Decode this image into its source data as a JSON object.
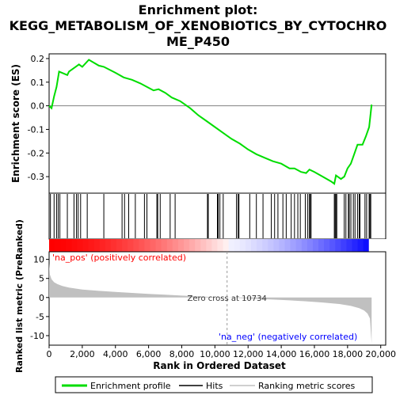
{
  "chart_data": {
    "type": "line",
    "title_lines": [
      "Enrichment plot:",
      "KEGG_METABOLISM_OF_XENOBIOTICS_BY_CYTOCHRO",
      "ME_P450"
    ],
    "top_panel": {
      "ylabel": "Enrichment score (ES)",
      "ylim": [
        -0.37,
        0.22
      ],
      "yticks": [
        "0.2",
        "0.1",
        "0.0",
        "-0.1",
        "-0.2",
        "-0.3"
      ],
      "ytick_values": [
        0.2,
        0.1,
        0.0,
        -0.1,
        -0.2,
        -0.3
      ],
      "series": [
        {
          "name": "Enrichment profile",
          "color": "#00dd00",
          "x": [
            0,
            150,
            300,
            450,
            600,
            1100,
            1200,
            1600,
            1800,
            2000,
            2400,
            3000,
            3300,
            4000,
            4500,
            5000,
            5500,
            5900,
            6300,
            6600,
            7000,
            7400,
            7900,
            8500,
            9000,
            9500,
            10000,
            10500,
            11000,
            11500,
            12000,
            12500,
            13000,
            13500,
            14000,
            14500,
            14800,
            15200,
            15500,
            15700,
            16000,
            16500,
            17000,
            17200,
            17300,
            17600,
            17800,
            18000,
            18200,
            18400,
            18600,
            18900,
            19100,
            19300,
            19450
          ],
          "y": [
            0.0,
            -0.01,
            0.04,
            0.08,
            0.145,
            0.13,
            0.145,
            0.165,
            0.175,
            0.165,
            0.195,
            0.17,
            0.165,
            0.14,
            0.12,
            0.11,
            0.095,
            0.08,
            0.065,
            0.07,
            0.055,
            0.035,
            0.02,
            -0.01,
            -0.04,
            -0.065,
            -0.09,
            -0.115,
            -0.14,
            -0.16,
            -0.185,
            -0.205,
            -0.22,
            -0.235,
            -0.245,
            -0.265,
            -0.265,
            -0.28,
            -0.285,
            -0.27,
            -0.28,
            -0.3,
            -0.32,
            -0.33,
            -0.295,
            -0.31,
            -0.3,
            -0.265,
            -0.245,
            -0.205,
            -0.165,
            -0.165,
            -0.13,
            -0.09,
            0.005
          ]
        }
      ]
    },
    "hits_panel": {
      "hit_positions": [
        80,
        300,
        450,
        550,
        650,
        1100,
        1500,
        1650,
        1750,
        1900,
        2300,
        3300,
        4400,
        4550,
        4800,
        5200,
        5750,
        5900,
        6500,
        6550,
        6700,
        7300,
        7600,
        9550,
        9600,
        10150,
        10200,
        10300,
        10500,
        11300,
        11400,
        11450,
        12100,
        12500,
        12900,
        13400,
        13600,
        13800,
        14100,
        14300,
        14600,
        14800,
        15000,
        15150,
        15450,
        15600,
        15700,
        15750,
        15800,
        17200,
        17250,
        17300,
        17350,
        17800,
        17900,
        18050,
        18100,
        18200,
        18350,
        18450,
        18600,
        18700,
        18750,
        19050,
        19150,
        19300,
        19350,
        19400
      ]
    },
    "bottom_panel": {
      "ylabel": "Ranked list metric (PreRanked)",
      "ylim": [
        -12.5,
        12
      ],
      "yticks": [
        "10",
        "5",
        "0",
        "-5",
        "-10"
      ],
      "ytick_values": [
        10,
        5,
        0,
        -5,
        -10
      ],
      "metric_x": [
        0,
        50,
        150,
        300,
        500,
        800,
        1200,
        2000,
        3000,
        4000,
        5000,
        6000,
        7000,
        8000,
        9000,
        10000,
        10734,
        11500,
        12500,
        13500,
        14500,
        15500,
        16500,
        17500,
        18200,
        18700,
        19000,
        19200,
        19350,
        19450
      ],
      "metric_y": [
        9.0,
        6.0,
        4.8,
        4.0,
        3.5,
        3.0,
        2.6,
        2.1,
        1.75,
        1.45,
        1.2,
        0.95,
        0.75,
        0.5,
        0.3,
        0.12,
        0.0,
        -0.15,
        -0.35,
        -0.55,
        -0.75,
        -1.0,
        -1.3,
        -1.7,
        -2.2,
        -2.8,
        -3.4,
        -4.2,
        -5.5,
        -12.0
      ],
      "pos_label": "'na_pos' (positively correlated)",
      "neg_label": "'na_neg' (negatively correlated)",
      "zero_cross_label": "Zero cross at 10734",
      "zero_cross_x": 10734
    },
    "xaxis": {
      "xlabel": "Rank in Ordered Dataset",
      "xlim": [
        0,
        20300
      ],
      "xticks": [
        "0",
        "2,000",
        "4,000",
        "6,000",
        "8,000",
        "10,000",
        "12,000",
        "14,000",
        "16,000",
        "18,000",
        "20,000"
      ],
      "xtick_values": [
        0,
        2000,
        4000,
        6000,
        8000,
        10000,
        12000,
        14000,
        16000,
        18000,
        20000
      ]
    },
    "legend": {
      "placement": "bottom",
      "items": [
        "Enrichment profile",
        "Hits",
        "Ranking metric scores"
      ],
      "colors": [
        "#00dd00",
        "#000000",
        "#c0c0c0"
      ]
    },
    "colors": {
      "es_line": "#00dd00",
      "metric_fill": "#c0c0c0",
      "pos_text": "#ff0000",
      "neg_text": "#0000ff",
      "zero_line": "#808080",
      "bar_pos": "#ff0000",
      "bar_neg": "#0000ff"
    }
  }
}
